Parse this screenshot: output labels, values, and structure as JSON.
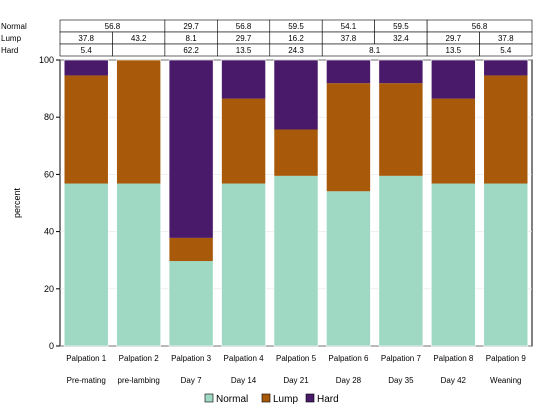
{
  "chart_data": {
    "type": "bar",
    "stacked": true,
    "ylabel": "percent",
    "ylim": [
      0,
      100
    ],
    "yticks": [
      0,
      20,
      40,
      60,
      80,
      100
    ],
    "categories": [
      "Palpation 1",
      "Palpation 2",
      "Palpation 3",
      "Palpation 4",
      "Palpation 5",
      "Palpation 6",
      "Palpation 7",
      "Palpation 8",
      "Palpation 9"
    ],
    "sublabels": [
      "Pre-mating",
      "pre-lambing",
      "Day 7",
      "Day 14",
      "Day 21",
      "Day 28",
      "Day 35",
      "Day 42",
      "Weaning"
    ],
    "series": [
      {
        "name": "Normal",
        "color": "#9fd9c4",
        "values": [
          56.8,
          56.8,
          29.7,
          56.8,
          59.5,
          54.1,
          59.5,
          56.8,
          56.8
        ]
      },
      {
        "name": "Lump",
        "color": "#a85a0a",
        "values": [
          37.8,
          43.2,
          8.1,
          29.7,
          16.2,
          37.8,
          32.4,
          29.7,
          37.8
        ]
      },
      {
        "name": "Hard",
        "color": "#4a1a6a",
        "values": [
          5.4,
          0,
          62.2,
          13.5,
          24.3,
          8.1,
          8.1,
          13.5,
          5.4
        ]
      }
    ],
    "table": {
      "rows": [
        {
          "label": "Normal",
          "cells": [
            {
              "text": "56.8",
              "span": [
                0,
                1
              ]
            },
            {
              "text": "29.7",
              "span": [
                2,
                2
              ]
            },
            {
              "text": "56.8",
              "span": [
                3,
                3
              ]
            },
            {
              "text": "59.5",
              "span": [
                4,
                4
              ]
            },
            {
              "text": "54.1",
              "span": [
                5,
                5
              ]
            },
            {
              "text": "59.5",
              "span": [
                6,
                6
              ]
            },
            {
              "text": "56.8",
              "span": [
                7,
                8
              ]
            }
          ]
        },
        {
          "label": "Lump",
          "cells": [
            {
              "text": "37.8",
              "span": [
                0,
                0
              ]
            },
            {
              "text": "43.2",
              "span": [
                1,
                1
              ]
            },
            {
              "text": "8.1",
              "span": [
                2,
                2
              ]
            },
            {
              "text": "29.7",
              "span": [
                3,
                3
              ]
            },
            {
              "text": "16.2",
              "span": [
                4,
                4
              ]
            },
            {
              "text": "37.8",
              "span": [
                5,
                5
              ]
            },
            {
              "text": "32.4",
              "span": [
                6,
                6
              ]
            },
            {
              "text": "29.7",
              "span": [
                7,
                7
              ]
            },
            {
              "text": "37.8",
              "span": [
                8,
                8
              ]
            }
          ]
        },
        {
          "label": "Hard",
          "cells": [
            {
              "text": "5.4",
              "span": [
                0,
                0
              ]
            },
            {
              "text": "",
              "span": [
                1,
                1
              ]
            },
            {
              "text": "62.2",
              "span": [
                2,
                2
              ]
            },
            {
              "text": "13.5",
              "span": [
                3,
                3
              ]
            },
            {
              "text": "24.3",
              "span": [
                4,
                4
              ]
            },
            {
              "text": "8.1",
              "span": [
                5,
                6
              ]
            },
            {
              "text": "13.5",
              "span": [
                7,
                7
              ]
            },
            {
              "text": "5.4",
              "span": [
                8,
                8
              ]
            }
          ]
        }
      ]
    },
    "legend_position": "bottom"
  }
}
